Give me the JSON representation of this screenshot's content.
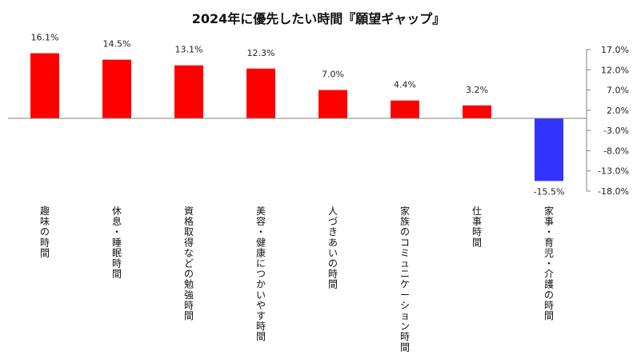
{
  "chart_data": {
    "type": "bar",
    "title": "2024年に優先したい時間『願望ギャップ』",
    "categories": [
      "趣味の時間",
      "休息・睡眠時間",
      "資格取得などの勉強時間",
      "美容・健康につかいやす時間",
      "人づきあいの時間",
      "家族のコミュニケーション時間",
      "仕事時間",
      "家事・育児・介護の時間"
    ],
    "values": [
      16.1,
      14.5,
      13.1,
      12.3,
      7.0,
      4.4,
      3.2,
      -15.5
    ],
    "value_labels": [
      "16.1%",
      "14.5%",
      "13.1%",
      "12.3%",
      "7.0%",
      "4.4%",
      "3.2%",
      "-15.5%"
    ],
    "y_ticks": [
      17.0,
      12.0,
      7.0,
      2.0,
      -3.0,
      -8.0,
      -13.0,
      -18.0
    ],
    "y_tick_labels": [
      "17.0%",
      "12.0%",
      "7.0%",
      "2.0%",
      "-3.0%",
      "-8.0%",
      "-13.0%",
      "-18.0%"
    ],
    "ylim": [
      -18,
      17
    ],
    "y_axis_side": "right",
    "grid": false,
    "colors": {
      "positive": "#ff0000",
      "negative": "#3333ff",
      "axis": "#808080"
    }
  }
}
